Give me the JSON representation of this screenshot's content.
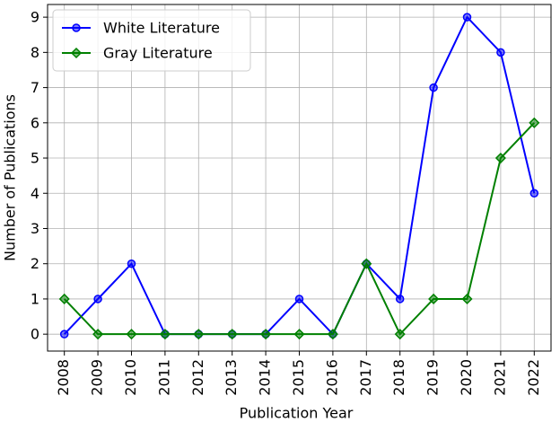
{
  "chart_data": {
    "type": "line",
    "x": [
      2008,
      2009,
      2010,
      2011,
      2012,
      2013,
      2014,
      2015,
      2016,
      2017,
      2018,
      2019,
      2020,
      2021,
      2022
    ],
    "series": [
      {
        "name": "White Literature",
        "color": "#0000ff",
        "marker": "circle",
        "values": [
          0,
          1,
          2,
          0,
          0,
          0,
          0,
          1,
          0,
          2,
          1,
          7,
          9,
          8,
          4
        ]
      },
      {
        "name": "Gray Literature",
        "color": "#008000",
        "marker": "diamond",
        "values": [
          1,
          0,
          0,
          0,
          0,
          0,
          0,
          0,
          0,
          2,
          0,
          1,
          1,
          5,
          6
        ]
      }
    ],
    "x_label": "Publication Year",
    "y_label": "Number of Publications",
    "xlim": [
      2007.5,
      2022.5
    ],
    "xticks": [
      2008,
      2009,
      2010,
      2011,
      2012,
      2013,
      2014,
      2015,
      2016,
      2017,
      2018,
      2019,
      2020,
      2021,
      2022
    ],
    "ylim": [
      -0.48,
      9.36
    ],
    "yticks": [
      0,
      1,
      2,
      3,
      4,
      5,
      6,
      7,
      8,
      9
    ],
    "grid": true,
    "legend": "upper left"
  }
}
